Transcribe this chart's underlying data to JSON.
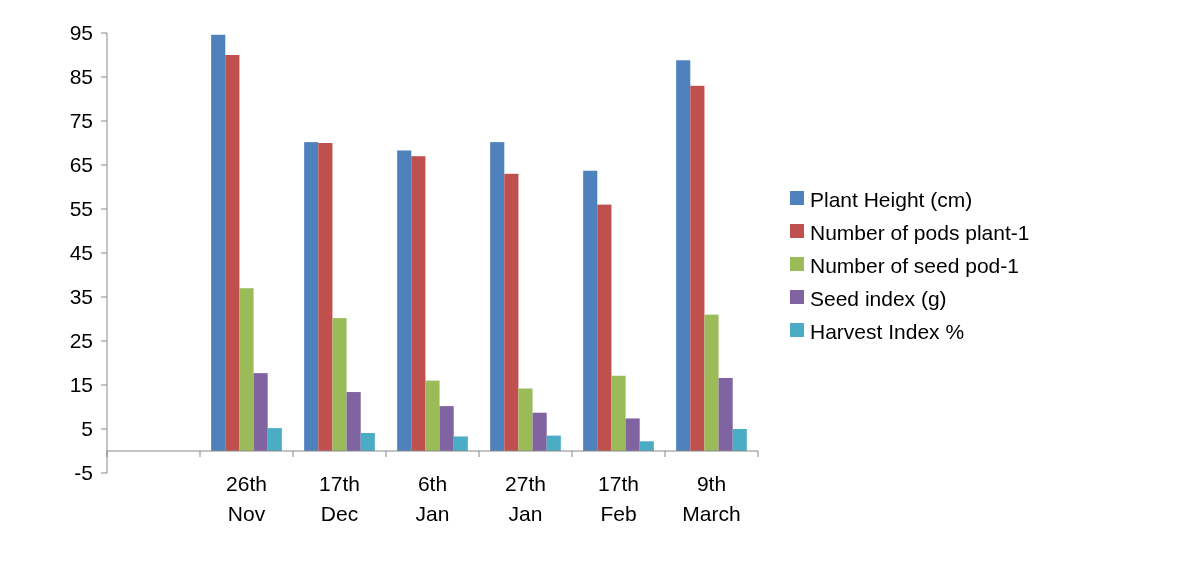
{
  "chart_data": {
    "type": "bar",
    "categories": [
      null,
      "26th Nov",
      "17th Dec",
      "6th Jan",
      "27th Jan",
      "17th Feb",
      "9th March"
    ],
    "series": [
      {
        "name": "Plant Height (cm)",
        "color": "#4f81bd",
        "values": [
          null,
          94.6,
          70.2,
          68.3,
          70.2,
          63.7,
          88.8
        ]
      },
      {
        "name": "Number of pods plant-1",
        "color": "#c0504d",
        "values": [
          null,
          90,
          70,
          67,
          63,
          56,
          83
        ]
      },
      {
        "name": "Number of seed pod-1",
        "color": "#9bbb59",
        "values": [
          null,
          37,
          30.2,
          16,
          14.2,
          17.1,
          31
        ]
      },
      {
        "name": "Seed index (g)",
        "color": "#8064a2",
        "values": [
          null,
          17.7,
          13.4,
          10.2,
          8.7,
          7.4,
          16.6
        ]
      },
      {
        "name": "Harvest Index %",
        "color": "#4bacc6",
        "values": [
          null,
          5.2,
          4.1,
          3.3,
          3.5,
          2.2,
          5
        ]
      }
    ],
    "ylim": [
      -5,
      95
    ],
    "yticks": [
      -5,
      5,
      15,
      25,
      35,
      45,
      55,
      65,
      75,
      85,
      95
    ],
    "grid": false,
    "legend": "right"
  }
}
